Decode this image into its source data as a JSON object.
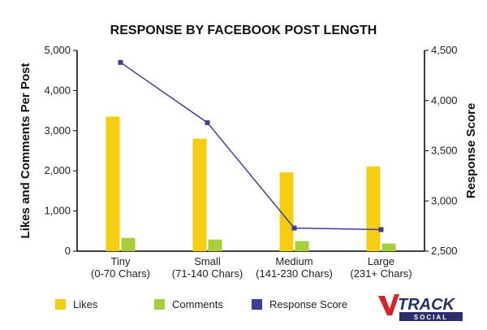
{
  "chart_data": {
    "type": "bar",
    "title": "RESPONSE BY FACEBOOK POST LENGTH",
    "categories": [
      [
        "Tiny",
        "(0-70 Chars)"
      ],
      [
        "Small",
        "(71-140 Chars)"
      ],
      [
        "Medium",
        "(141-230 Chars)"
      ],
      [
        "Large",
        "(231+ Chars)"
      ]
    ],
    "ylabel": "Likes and Comments Per Post",
    "y2label": "Response Score",
    "ylim": [
      0,
      5000
    ],
    "y2lim": [
      2500,
      4500
    ],
    "yticks": [
      "0",
      "1,000",
      "2,000",
      "3,000",
      "4,000",
      "5,000"
    ],
    "y2ticks": [
      "2,500",
      "3,000",
      "3,500",
      "4,000",
      "4,500"
    ],
    "grid": false,
    "legend_position": "bottom",
    "series": [
      {
        "name": "Likes",
        "type": "bar",
        "axis": "left",
        "color": "#f5cc0f",
        "values": [
          3350,
          2800,
          1960,
          2110
        ]
      },
      {
        "name": "Comments",
        "type": "bar",
        "axis": "left",
        "color": "#a6cf3a",
        "values": [
          330,
          290,
          250,
          190
        ]
      },
      {
        "name": "Response Score",
        "type": "line",
        "axis": "right",
        "color": "#3d3f94",
        "values": [
          4380,
          3780,
          2730,
          2715
        ]
      }
    ]
  },
  "logo": {
    "main": "TRACK",
    "sub": "SOCIAL"
  }
}
